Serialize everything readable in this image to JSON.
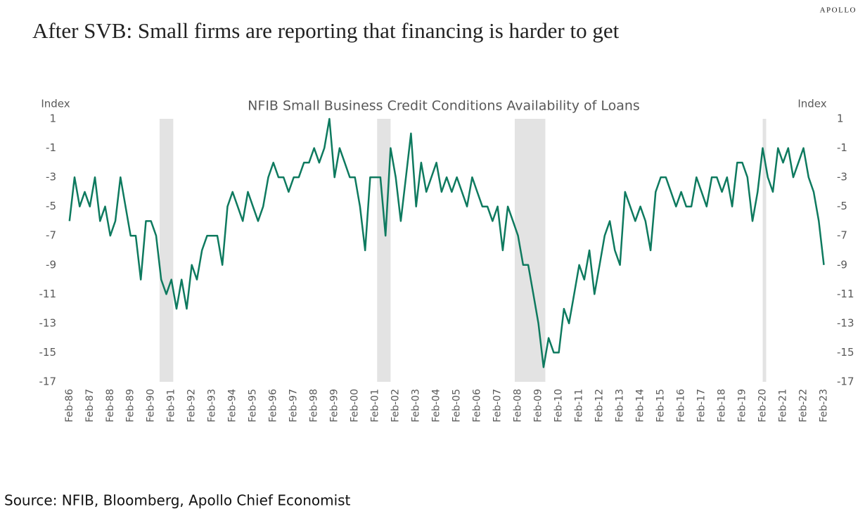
{
  "brand": "APOLLO",
  "title": "After SVB: Small firms are reporting that financing is harder to get",
  "source": "Source: NFIB, Bloomberg, Apollo Chief Economist",
  "chart_data": {
    "type": "line",
    "title": "NFIB Small Business Credit Conditions Availability of Loans",
    "y_axis_label": "Index",
    "y2_axis_label": "Index",
    "color": "#0e7a5f",
    "recession_color": "#e3e3e3",
    "recessions": [
      [
        1990.5,
        1991.17
      ],
      [
        2001.17,
        2001.83
      ],
      [
        2007.92,
        2009.42
      ],
      [
        2020.08,
        2020.25
      ]
    ],
    "x": [
      1986.08,
      1986.33,
      1986.58,
      1986.83,
      1987.08,
      1987.33,
      1987.58,
      1987.83,
      1988.08,
      1988.33,
      1988.58,
      1988.83,
      1989.08,
      1989.33,
      1989.58,
      1989.83,
      1990.08,
      1990.33,
      1990.58,
      1990.83,
      1991.08,
      1991.33,
      1991.58,
      1991.83,
      1992.08,
      1992.33,
      1992.58,
      1992.83,
      1993.08,
      1993.33,
      1993.58,
      1993.83,
      1994.08,
      1994.33,
      1994.58,
      1994.83,
      1995.08,
      1995.33,
      1995.58,
      1995.83,
      1996.08,
      1996.33,
      1996.58,
      1996.83,
      1997.08,
      1997.33,
      1997.58,
      1997.83,
      1998.08,
      1998.33,
      1998.58,
      1998.83,
      1999.08,
      1999.33,
      1999.58,
      1999.83,
      2000.08,
      2000.33,
      2000.58,
      2000.83,
      2001.08,
      2001.33,
      2001.58,
      2001.83,
      2002.08,
      2002.33,
      2002.58,
      2002.83,
      2003.08,
      2003.33,
      2003.58,
      2003.83,
      2004.08,
      2004.33,
      2004.58,
      2004.83,
      2005.08,
      2005.33,
      2005.58,
      2005.83,
      2006.08,
      2006.33,
      2006.58,
      2006.83,
      2007.08,
      2007.33,
      2007.58,
      2007.83,
      2008.08,
      2008.33,
      2008.58,
      2008.83,
      2009.08,
      2009.33,
      2009.58,
      2009.83,
      2010.08,
      2010.33,
      2010.58,
      2010.83,
      2011.08,
      2011.33,
      2011.58,
      2011.83,
      2012.08,
      2012.33,
      2012.58,
      2012.83,
      2013.08,
      2013.33,
      2013.58,
      2013.83,
      2014.08,
      2014.33,
      2014.58,
      2014.83,
      2015.08,
      2015.33,
      2015.58,
      2015.83,
      2016.08,
      2016.33,
      2016.58,
      2016.83,
      2017.08,
      2017.33,
      2017.58,
      2017.83,
      2018.08,
      2018.33,
      2018.58,
      2018.83,
      2019.08,
      2019.33,
      2019.58,
      2019.83,
      2020.08,
      2020.33,
      2020.58,
      2020.83,
      2021.08,
      2021.33,
      2021.58,
      2021.83,
      2022.08,
      2022.33,
      2022.58,
      2022.83,
      2023.08
    ],
    "series": [
      {
        "name": "Availability of Loans",
        "values": [
          -6,
          -3,
          -5,
          -4,
          -5,
          -3,
          -6,
          -5,
          -7,
          -6,
          -3,
          -5,
          -7,
          -7,
          -10,
          -6,
          -6,
          -7,
          -10,
          -11,
          -10,
          -12,
          -10,
          -12,
          -9,
          -10,
          -8,
          -7,
          -7,
          -7,
          -9,
          -5,
          -4,
          -5,
          -6,
          -4,
          -5,
          -6,
          -5,
          -3,
          -2,
          -3,
          -3,
          -4,
          -3,
          -3,
          -2,
          -2,
          -1,
          -2,
          -1,
          1,
          -3,
          -1,
          -2,
          -3,
          -3,
          -5,
          -8,
          -3,
          -3,
          -3,
          -7,
          -1,
          -3,
          -6,
          -3,
          0,
          -5,
          -2,
          -4,
          -3,
          -2,
          -4,
          -3,
          -4,
          -3,
          -4,
          -5,
          -3,
          -4,
          -5,
          -5,
          -6,
          -5,
          -8,
          -5,
          -6,
          -7,
          -9,
          -9,
          -11,
          -13,
          -16,
          -14,
          -15,
          -15,
          -12,
          -13,
          -11,
          -9,
          -10,
          -8,
          -11,
          -9,
          -7,
          -6,
          -8,
          -9,
          -4,
          -5,
          -6,
          -5,
          -6,
          -8,
          -4,
          -3,
          -3,
          -4,
          -5,
          -4,
          -5,
          -5,
          -3,
          -4,
          -5,
          -3,
          -3,
          -4,
          -3,
          -5,
          -2,
          -2,
          -3,
          -6,
          -4,
          -1,
          -3,
          -4,
          -1,
          -2,
          -1,
          -3,
          -2,
          -1,
          -3,
          -4,
          -6,
          -9
        ]
      }
    ],
    "xlim": [
      1985.95,
      2023.2
    ],
    "ylim": [
      1,
      -17
    ],
    "yticks": [
      1,
      -1,
      -3,
      -5,
      -7,
      -9,
      -11,
      -13,
      -15,
      -17
    ],
    "xticks": [
      {
        "value": 1986.08,
        "label": "Feb-86"
      },
      {
        "value": 1987.08,
        "label": "Feb-87"
      },
      {
        "value": 1988.08,
        "label": "Feb-88"
      },
      {
        "value": 1989.08,
        "label": "Feb-89"
      },
      {
        "value": 1990.08,
        "label": "Feb-90"
      },
      {
        "value": 1991.08,
        "label": "Feb-91"
      },
      {
        "value": 1992.08,
        "label": "Feb-92"
      },
      {
        "value": 1993.08,
        "label": "Feb-93"
      },
      {
        "value": 1994.08,
        "label": "Feb-94"
      },
      {
        "value": 1995.08,
        "label": "Feb-95"
      },
      {
        "value": 1996.08,
        "label": "Feb-96"
      },
      {
        "value": 1997.08,
        "label": "Feb-97"
      },
      {
        "value": 1998.08,
        "label": "Feb-98"
      },
      {
        "value": 1999.08,
        "label": "Feb-99"
      },
      {
        "value": 2000.08,
        "label": "Feb-00"
      },
      {
        "value": 2001.08,
        "label": "Feb-01"
      },
      {
        "value": 2002.08,
        "label": "Feb-02"
      },
      {
        "value": 2003.08,
        "label": "Feb-03"
      },
      {
        "value": 2004.08,
        "label": "Feb-04"
      },
      {
        "value": 2005.08,
        "label": "Feb-05"
      },
      {
        "value": 2006.08,
        "label": "Feb-06"
      },
      {
        "value": 2007.08,
        "label": "Feb-07"
      },
      {
        "value": 2008.08,
        "label": "Feb-08"
      },
      {
        "value": 2009.08,
        "label": "Feb-09"
      },
      {
        "value": 2010.08,
        "label": "Feb-10"
      },
      {
        "value": 2011.08,
        "label": "Feb-11"
      },
      {
        "value": 2012.08,
        "label": "Feb-12"
      },
      {
        "value": 2013.08,
        "label": "Feb-13"
      },
      {
        "value": 2014.08,
        "label": "Feb-14"
      },
      {
        "value": 2015.08,
        "label": "Feb-15"
      },
      {
        "value": 2016.08,
        "label": "Feb-16"
      },
      {
        "value": 2017.08,
        "label": "Feb-17"
      },
      {
        "value": 2018.08,
        "label": "Feb-18"
      },
      {
        "value": 2019.08,
        "label": "Feb-19"
      },
      {
        "value": 2020.08,
        "label": "Feb-20"
      },
      {
        "value": 2021.08,
        "label": "Feb-21"
      },
      {
        "value": 2022.08,
        "label": "Feb-22"
      },
      {
        "value": 2023.08,
        "label": "Feb-23"
      }
    ]
  }
}
